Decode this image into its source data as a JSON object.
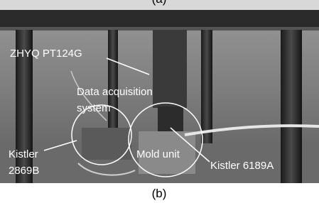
{
  "caption_top": "(a)",
  "annotations": {
    "sensor": "ZHYQ PT124G",
    "daq_line1": "Data acquisition",
    "daq_line2": "system",
    "kistler_a_line1": "Kistler",
    "kistler_a_line2": "2869B",
    "mold": "Mold unit",
    "kistler_b": "Kistler 6189A"
  },
  "caption": "(b)"
}
